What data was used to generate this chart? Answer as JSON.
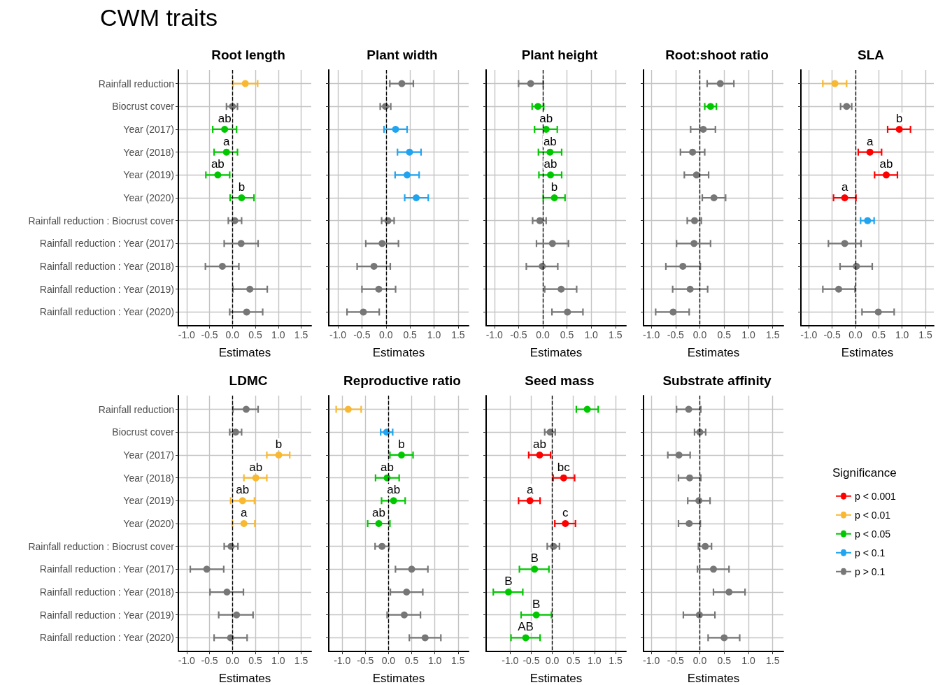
{
  "chart_data": [
    {
      "type": "other",
      "title": "CWM traits"
    },
    {
      "type": "scatter",
      "title": "Root length",
      "xlabel": "Estimates",
      "orientation": "horizontal",
      "grid": true,
      "legend": false,
      "marker": "circle",
      "categories": [
        "Rainfall reduction",
        "Biocrust cover",
        "Year (2017)",
        "Year (2018)",
        "Year (2019)",
        "Year (2020)",
        "Rainfall reduction : Biocrust cover",
        "Rainfall reduction : Year (2017)",
        "Rainfall reduction : Year (2018)",
        "Rainfall reduction : Year (2019)",
        "Rainfall reduction : Year (2020)"
      ],
      "xlim": [
        -1.18,
        1.72
      ],
      "xticks": [
        {
          "value": -1,
          "label": "-1.0"
        },
        {
          "value": -0.5,
          "label": "-0.5"
        },
        {
          "value": 0,
          "label": "0.0"
        },
        {
          "value": 0.5,
          "label": "0.5"
        },
        {
          "value": 1,
          "label": "1.0"
        },
        {
          "value": 1.5,
          "label": "1.5"
        }
      ],
      "ref_lines": [
        {
          "axis": "x",
          "value": 0,
          "line_style": "dashed",
          "color": "#000000"
        }
      ],
      "series": [
        {
          "color": "#f9b831",
          "values": [
            0.28,
            null,
            null,
            null,
            null,
            null,
            null,
            null,
            null,
            null,
            null
          ],
          "errors": [
            [
              0.01,
              0.55
            ],
            null,
            null,
            null,
            null,
            null,
            null,
            null,
            null,
            null,
            null
          ]
        },
        {
          "color": "#00c800",
          "values": [
            null,
            null,
            -0.17,
            -0.13,
            -0.32,
            0.2,
            null,
            null,
            null,
            null,
            null
          ],
          "errors": [
            null,
            null,
            [
              -0.43,
              0.09
            ],
            [
              -0.4,
              0.11
            ],
            [
              -0.58,
              -0.06
            ],
            [
              -0.05,
              0.47
            ],
            null,
            null,
            null,
            null,
            null
          ]
        },
        {
          "color": "#777777",
          "values": [
            null,
            0.0,
            null,
            null,
            null,
            null,
            0.05,
            0.19,
            -0.22,
            0.38,
            0.31
          ],
          "errors": [
            null,
            [
              -0.13,
              0.11
            ],
            null,
            null,
            null,
            null,
            [
              -0.09,
              0.2
            ],
            [
              -0.18,
              0.56
            ],
            [
              -0.59,
              0.14
            ],
            [
              0.01,
              0.76
            ],
            [
              -0.06,
              0.66
            ]
          ]
        }
      ],
      "annotations": [
        {
          "text": "ab",
          "x": -0.17,
          "y": "Year (2017)"
        },
        {
          "text": "a",
          "x": -0.13,
          "y": "Year (2018)"
        },
        {
          "text": "ab",
          "x": -0.32,
          "y": "Year (2019)"
        },
        {
          "text": "b",
          "x": 0.2,
          "y": "Year (2020)"
        }
      ]
    },
    {
      "type": "scatter",
      "title": "Plant width",
      "xlabel": "Estimates",
      "orientation": "horizontal",
      "grid": true,
      "legend": false,
      "marker": "circle",
      "tick_labels": "x",
      "categories": [
        "Rainfall reduction",
        "Biocrust cover",
        "Year (2017)",
        "Year (2018)",
        "Year (2019)",
        "Year (2020)",
        "Rainfall reduction : Biocrust cover",
        "Rainfall reduction : Year (2017)",
        "Rainfall reduction : Year (2018)",
        "Rainfall reduction : Year (2019)",
        "Rainfall reduction : Year (2020)"
      ],
      "xlim": [
        -1.19,
        1.72
      ],
      "xticks": [
        {
          "value": -1,
          "label": "-1.0"
        },
        {
          "value": -0.5,
          "label": "-0.5"
        },
        {
          "value": 0,
          "label": "0.0"
        },
        {
          "value": 0.5,
          "label": "0.5"
        },
        {
          "value": 1,
          "label": "1.0"
        },
        {
          "value": 1.5,
          "label": "1.5"
        }
      ],
      "ref_lines": [
        {
          "axis": "x",
          "value": 0,
          "line_style": "dashed",
          "color": "#000000"
        }
      ],
      "series": [
        {
          "color": "#20a4ef",
          "values": [
            null,
            null,
            0.2,
            0.49,
            0.44,
            0.63,
            null,
            null,
            null,
            null,
            null
          ],
          "errors": [
            null,
            null,
            [
              -0.04,
              0.44
            ],
            [
              0.24,
              0.73
            ],
            [
              0.19,
              0.69
            ],
            [
              0.39,
              0.88
            ],
            null,
            null,
            null,
            null,
            null
          ]
        },
        {
          "color": "#777777",
          "values": [
            0.33,
            -0.01,
            null,
            null,
            null,
            null,
            0.04,
            -0.08,
            -0.25,
            -0.15,
            -0.47
          ],
          "errors": [
            [
              0.08,
              0.57
            ],
            [
              -0.12,
              0.1
            ],
            null,
            null,
            null,
            null,
            [
              -0.09,
              0.17
            ],
            [
              -0.42,
              0.26
            ],
            [
              -0.6,
              0.09
            ],
            [
              -0.5,
              0.2
            ],
            [
              -0.81,
              -0.14
            ]
          ]
        }
      ]
    },
    {
      "type": "scatter",
      "title": "Plant height",
      "xlabel": "Estimates",
      "orientation": "horizontal",
      "grid": true,
      "legend": false,
      "marker": "circle",
      "tick_labels": "x",
      "categories": [
        "Rainfall reduction",
        "Biocrust cover",
        "Year (2017)",
        "Year (2018)",
        "Year (2019)",
        "Year (2020)",
        "Rainfall reduction : Biocrust cover",
        "Rainfall reduction : Year (2017)",
        "Rainfall reduction : Year (2018)",
        "Rainfall reduction : Year (2019)",
        "Rainfall reduction : Year (2020)"
      ],
      "xlim": [
        -1.17,
        1.72
      ],
      "xticks": [
        {
          "value": -1,
          "label": "-1.0"
        },
        {
          "value": -0.5,
          "label": "-0.5"
        },
        {
          "value": 0,
          "label": "0.0"
        },
        {
          "value": 0.5,
          "label": "0.5"
        },
        {
          "value": 1,
          "label": "1.0"
        },
        {
          "value": 1.5,
          "label": "1.5"
        }
      ],
      "ref_lines": [
        {
          "axis": "x",
          "value": 0,
          "line_style": "dashed",
          "color": "#000000"
        }
      ],
      "series": [
        {
          "color": "#00c800",
          "values": [
            null,
            -0.1,
            0.07,
            0.15,
            0.16,
            0.24,
            null,
            null,
            null,
            null,
            null
          ],
          "errors": [
            null,
            [
              -0.22,
              0.02
            ],
            [
              -0.17,
              0.3
            ],
            [
              -0.09,
              0.39
            ],
            [
              -0.08,
              0.39
            ],
            [
              0.01,
              0.46
            ],
            null,
            null,
            null,
            null,
            null
          ]
        },
        {
          "color": "#777777",
          "values": [
            -0.25,
            null,
            null,
            null,
            null,
            null,
            -0.06,
            0.2,
            -0.01,
            0.38,
            0.51
          ],
          "errors": [
            [
              -0.5,
              0.01
            ],
            null,
            null,
            null,
            null,
            null,
            [
              -0.21,
              0.07
            ],
            [
              -0.13,
              0.53
            ],
            [
              -0.34,
              0.31
            ],
            [
              0.04,
              0.7
            ],
            [
              0.19,
              0.83
            ]
          ]
        }
      ],
      "annotations": [
        {
          "text": "ab",
          "x": 0.07,
          "y": "Year (2017)"
        },
        {
          "text": "ab",
          "x": 0.15,
          "y": "Year (2018)"
        },
        {
          "text": "ab",
          "x": 0.16,
          "y": "Year (2019)"
        },
        {
          "text": "b",
          "x": 0.24,
          "y": "Year (2020)"
        }
      ]
    },
    {
      "type": "scatter",
      "title": "Root:shoot ratio",
      "xlabel": "Estimates",
      "orientation": "horizontal",
      "grid": true,
      "legend": false,
      "marker": "circle",
      "tick_labels": "x",
      "categories": [
        "Rainfall reduction",
        "Biocrust cover",
        "Year (2017)",
        "Year (2018)",
        "Year (2019)",
        "Year (2020)",
        "Rainfall reduction : Biocrust cover",
        "Rainfall reduction : Year (2017)",
        "Rainfall reduction : Year (2018)",
        "Rainfall reduction : Year (2019)",
        "Rainfall reduction : Year (2020)"
      ],
      "xlim": [
        -1.16,
        1.72
      ],
      "xticks": [
        {
          "value": -1,
          "label": "-1.0"
        },
        {
          "value": -0.5,
          "label": "-0.5"
        },
        {
          "value": 0,
          "label": "0.0"
        },
        {
          "value": 0.5,
          "label": "0.5"
        },
        {
          "value": 1,
          "label": "1.0"
        },
        {
          "value": 1.5,
          "label": "1.5"
        }
      ],
      "ref_lines": [
        {
          "axis": "x",
          "value": 0,
          "line_style": "dashed",
          "color": "#000000"
        }
      ],
      "series": [
        {
          "color": "#00c800",
          "values": [
            null,
            0.22,
            null,
            null,
            null,
            null,
            null,
            null,
            null,
            null,
            null
          ],
          "errors": [
            null,
            [
              0.1,
              0.34
            ],
            null,
            null,
            null,
            null,
            null,
            null,
            null,
            null,
            null
          ]
        },
        {
          "color": "#777777",
          "values": [
            0.42,
            null,
            0.07,
            -0.15,
            -0.07,
            0.29,
            -0.11,
            -0.12,
            -0.35,
            -0.2,
            -0.55
          ],
          "errors": [
            [
              0.15,
              0.7
            ],
            null,
            [
              -0.19,
              0.32
            ],
            [
              -0.4,
              0.1
            ],
            [
              -0.32,
              0.18
            ],
            [
              0.05,
              0.53
            ],
            [
              -0.26,
              0.03
            ],
            [
              -0.48,
              0.22
            ],
            [
              -0.7,
              0.01
            ],
            [
              -0.56,
              0.16
            ],
            [
              -0.91,
              -0.22
            ]
          ]
        }
      ]
    },
    {
      "type": "scatter",
      "title": "SLA",
      "xlabel": "Estimates",
      "orientation": "horizontal",
      "grid": true,
      "legend": false,
      "marker": "circle",
      "tick_labels": "x",
      "categories": [
        "Rainfall reduction",
        "Biocrust cover",
        "Year (2017)",
        "Year (2018)",
        "Year (2019)",
        "Year (2020)",
        "Rainfall reduction : Biocrust cover",
        "Rainfall reduction : Year (2017)",
        "Rainfall reduction : Year (2018)",
        "Rainfall reduction : Year (2019)",
        "Rainfall reduction : Year (2020)"
      ],
      "xlim": [
        -1.17,
        1.68
      ],
      "xticks": [
        {
          "value": -1,
          "label": "-1.0"
        },
        {
          "value": -0.5,
          "label": "-0.5"
        },
        {
          "value": 0,
          "label": "0.0"
        },
        {
          "value": 0.5,
          "label": "0.5"
        },
        {
          "value": 1,
          "label": "1.0"
        },
        {
          "value": 1.5,
          "label": "1.5"
        }
      ],
      "ref_lines": [
        {
          "axis": "x",
          "value": 0,
          "line_style": "dashed",
          "color": "#000000"
        }
      ],
      "series": [
        {
          "color": "#ff0000",
          "values": [
            null,
            null,
            0.94,
            0.31,
            0.66,
            -0.23,
            null,
            null,
            null,
            null,
            null
          ],
          "errors": [
            null,
            null,
            [
              0.69,
              1.18
            ],
            [
              0.06,
              0.56
            ],
            [
              0.41,
              0.9
            ],
            [
              -0.47,
              0.01
            ],
            null,
            null,
            null,
            null,
            null
          ]
        },
        {
          "color": "#f9b831",
          "values": [
            -0.44,
            null,
            null,
            null,
            null,
            null,
            null,
            null,
            null,
            null,
            null
          ],
          "errors": [
            [
              -0.7,
              -0.19
            ],
            null,
            null,
            null,
            null,
            null,
            null,
            null,
            null,
            null,
            null
          ]
        },
        {
          "color": "#20a4ef",
          "values": [
            null,
            null,
            null,
            null,
            null,
            null,
            0.26,
            null,
            null,
            null,
            null
          ],
          "errors": [
            null,
            null,
            null,
            null,
            null,
            null,
            [
              0.11,
              0.4
            ],
            null,
            null,
            null,
            null
          ]
        },
        {
          "color": "#777777",
          "values": [
            null,
            -0.19,
            null,
            null,
            null,
            null,
            null,
            -0.23,
            0.02,
            -0.36,
            0.49
          ],
          "errors": [
            null,
            [
              -0.32,
              -0.08
            ],
            null,
            null,
            null,
            null,
            null,
            [
              -0.58,
              0.12
            ],
            [
              -0.33,
              0.36
            ],
            [
              -0.7,
              -0.01
            ],
            [
              0.14,
              0.83
            ]
          ]
        }
      ],
      "annotations": [
        {
          "text": "b",
          "x": 0.94,
          "y": "Year (2017)"
        },
        {
          "text": "a",
          "x": 0.31,
          "y": "Year (2018)"
        },
        {
          "text": "ab",
          "x": 0.66,
          "y": "Year (2019)"
        },
        {
          "text": "a",
          "x": -0.23,
          "y": "Year (2020)"
        }
      ]
    },
    {
      "type": "scatter",
      "title": "LDMC",
      "xlabel": "Estimates",
      "orientation": "horizontal",
      "grid": true,
      "legend": false,
      "marker": "circle",
      "categories": [
        "Rainfall reduction",
        "Biocrust cover",
        "Year (2017)",
        "Year (2018)",
        "Year (2019)",
        "Year (2020)",
        "Rainfall reduction : Biocrust cover",
        "Rainfall reduction : Year (2017)",
        "Rainfall reduction : Year (2018)",
        "Rainfall reduction : Year (2019)",
        "Rainfall reduction : Year (2020)"
      ],
      "xlim": [
        -1.18,
        1.72
      ],
      "xticks": [
        {
          "value": -1,
          "label": "-1.0"
        },
        {
          "value": -0.5,
          "label": "-0.5"
        },
        {
          "value": 0,
          "label": "0.0"
        },
        {
          "value": 0.5,
          "label": "0.5"
        },
        {
          "value": 1,
          "label": "1.0"
        },
        {
          "value": 1.5,
          "label": "1.5"
        }
      ],
      "ref_lines": [
        {
          "axis": "x",
          "value": 0,
          "line_style": "dashed",
          "color": "#000000"
        }
      ],
      "series": [
        {
          "color": "#f9b831",
          "values": [
            null,
            null,
            1.01,
            0.51,
            0.22,
            0.25,
            null,
            null,
            null,
            null,
            null
          ],
          "errors": [
            null,
            null,
            [
              0.75,
              1.25
            ],
            [
              0.25,
              0.75
            ],
            [
              -0.04,
              0.48
            ],
            [
              0.0,
              0.49
            ],
            null,
            null,
            null,
            null,
            null
          ]
        },
        {
          "color": "#777777",
          "values": [
            0.3,
            0.07,
            null,
            null,
            null,
            null,
            -0.03,
            -0.56,
            -0.12,
            0.09,
            -0.04
          ],
          "errors": [
            [
              0.01,
              0.56
            ],
            [
              -0.06,
              0.2
            ],
            null,
            null,
            null,
            null,
            [
              -0.18,
              0.12
            ],
            [
              -0.92,
              -0.19
            ],
            [
              -0.49,
              0.24
            ],
            [
              -0.3,
              0.45
            ],
            [
              -0.4,
              0.32
            ]
          ]
        }
      ],
      "annotations": [
        {
          "text": "b",
          "x": 1.01,
          "y": "Year (2017)"
        },
        {
          "text": "ab",
          "x": 0.51,
          "y": "Year (2018)"
        },
        {
          "text": "ab",
          "x": 0.22,
          "y": "Year (2019)"
        },
        {
          "text": "a",
          "x": 0.25,
          "y": "Year (2020)"
        }
      ]
    },
    {
      "type": "scatter",
      "title": "Reproductive ratio",
      "xlabel": "Estimates",
      "orientation": "horizontal",
      "grid": true,
      "legend": false,
      "marker": "circle",
      "tick_labels": "x",
      "categories": [
        "Rainfall reduction",
        "Biocrust cover",
        "Year (2017)",
        "Year (2018)",
        "Year (2019)",
        "Year (2020)",
        "Rainfall reduction : Biocrust cover",
        "Rainfall reduction : Year (2017)",
        "Rainfall reduction : Year (2018)",
        "Rainfall reduction : Year (2019)",
        "Rainfall reduction : Year (2020)"
      ],
      "xlim": [
        -1.29,
        1.73
      ],
      "xticks": [
        {
          "value": -1,
          "label": "-1.0"
        },
        {
          "value": -0.5,
          "label": "-0.5"
        },
        {
          "value": 0,
          "label": "0.0"
        },
        {
          "value": 0.5,
          "label": "0.5"
        },
        {
          "value": 1,
          "label": "1.0"
        },
        {
          "value": 1.5,
          "label": "1.5"
        }
      ],
      "ref_lines": [
        {
          "axis": "x",
          "value": 0,
          "line_style": "dashed",
          "color": "#000000"
        }
      ],
      "series": [
        {
          "color": "#f9b831",
          "values": [
            -0.87,
            null,
            null,
            null,
            null,
            null,
            null,
            null,
            null,
            null,
            null
          ],
          "errors": [
            [
              -1.13,
              -0.59
            ],
            null,
            null,
            null,
            null,
            null,
            null,
            null,
            null,
            null,
            null
          ]
        },
        {
          "color": "#00c800",
          "values": [
            null,
            null,
            0.28,
            -0.03,
            0.11,
            -0.21,
            null,
            null,
            null,
            null,
            null
          ],
          "errors": [
            null,
            null,
            [
              0.03,
              0.53
            ],
            [
              -0.28,
              0.23
            ],
            [
              -0.15,
              0.36
            ],
            [
              -0.45,
              0.03
            ],
            null,
            null,
            null,
            null,
            null
          ]
        },
        {
          "color": "#20a4ef",
          "values": [
            null,
            -0.04,
            null,
            null,
            null,
            null,
            null,
            null,
            null,
            null,
            null
          ],
          "errors": [
            null,
            [
              -0.17,
              0.09
            ],
            null,
            null,
            null,
            null,
            null,
            null,
            null,
            null,
            null
          ]
        },
        {
          "color": "#777777",
          "values": [
            null,
            null,
            null,
            null,
            null,
            null,
            -0.14,
            0.5,
            0.39,
            0.34,
            0.79
          ],
          "errors": [
            null,
            null,
            null,
            null,
            null,
            null,
            [
              -0.29,
              0.01
            ],
            [
              0.15,
              0.85
            ],
            [
              0.04,
              0.74
            ],
            [
              -0.03,
              0.69
            ],
            [
              0.45,
              1.13
            ]
          ]
        }
      ],
      "annotations": [
        {
          "text": "b",
          "x": 0.28,
          "y": "Year (2017)"
        },
        {
          "text": "ab",
          "x": -0.03,
          "y": "Year (2018)"
        },
        {
          "text": "ab",
          "x": 0.11,
          "y": "Year (2019)"
        },
        {
          "text": "ab",
          "x": -0.21,
          "y": "Year (2020)"
        }
      ]
    },
    {
      "type": "scatter",
      "title": "Seed mass",
      "xlabel": "Estimates",
      "orientation": "horizontal",
      "grid": true,
      "legend": false,
      "marker": "circle",
      "tick_labels": "x",
      "categories": [
        "Rainfall reduction",
        "Biocrust cover",
        "Year (2017)",
        "Year (2018)",
        "Year (2019)",
        "Year (2020)",
        "Rainfall reduction : Biocrust cover",
        "Rainfall reduction : Year (2017)",
        "Rainfall reduction : Year (2018)",
        "Rainfall reduction : Year (2019)",
        "Rainfall reduction : Year (2020)"
      ],
      "xlim": [
        -1.57,
        1.75
      ],
      "xticks": [
        {
          "value": -1,
          "label": "-1.0"
        },
        {
          "value": -0.5,
          "label": "-0.5"
        },
        {
          "value": 0,
          "label": "0.0"
        },
        {
          "value": 0.5,
          "label": "0.5"
        },
        {
          "value": 1,
          "label": "1.0"
        },
        {
          "value": 1.5,
          "label": "1.5"
        }
      ],
      "ref_lines": [
        {
          "axis": "x",
          "value": 0,
          "line_style": "dashed",
          "color": "#000000"
        }
      ],
      "series": [
        {
          "color": "#ff0000",
          "values": [
            null,
            null,
            -0.3,
            0.27,
            -0.53,
            0.31,
            null,
            null,
            null,
            null,
            null
          ],
          "errors": [
            null,
            null,
            [
              -0.56,
              -0.04
            ],
            [
              0.02,
              0.53
            ],
            [
              -0.8,
              -0.29
            ],
            [
              0.06,
              0.55
            ],
            null,
            null,
            null,
            null,
            null
          ]
        },
        {
          "color": "#00c800",
          "values": [
            0.83,
            null,
            null,
            null,
            null,
            null,
            null,
            -0.42,
            -1.04,
            -0.38,
            -0.63
          ],
          "errors": [
            [
              0.57,
              1.09
            ],
            null,
            null,
            null,
            null,
            null,
            null,
            [
              -0.78,
              -0.08
            ],
            [
              -1.4,
              -0.7
            ],
            [
              -0.74,
              -0.02
            ],
            [
              -0.98,
              -0.29
            ]
          ]
        },
        {
          "color": "#777777",
          "values": [
            null,
            -0.05,
            null,
            null,
            null,
            null,
            0.03,
            null,
            null,
            null,
            null
          ],
          "errors": [
            null,
            [
              -0.18,
              0.07
            ],
            null,
            null,
            null,
            null,
            [
              -0.12,
              0.17
            ],
            null,
            null,
            null,
            null
          ]
        }
      ],
      "annotations": [
        {
          "text": "ab",
          "x": -0.3,
          "y": "Year (2017)"
        },
        {
          "text": "bc",
          "x": 0.27,
          "y": "Year (2018)"
        },
        {
          "text": "a",
          "x": -0.53,
          "y": "Year (2019)"
        },
        {
          "text": "c",
          "x": 0.31,
          "y": "Year (2020)"
        },
        {
          "text": "B",
          "x": -0.42,
          "y": "Rainfall reduction : Year (2017)"
        },
        {
          "text": "B",
          "x": -1.04,
          "y": "Rainfall reduction : Year (2018)"
        },
        {
          "text": "B",
          "x": -0.38,
          "y": "Rainfall reduction : Year (2019)"
        },
        {
          "text": "AB",
          "x": -0.63,
          "y": "Rainfall reduction : Year (2020)"
        }
      ]
    },
    {
      "type": "scatter",
      "title": "Substrate affinity",
      "xlabel": "Estimates",
      "orientation": "horizontal",
      "grid": true,
      "legend": "right",
      "legend_title": "Significance",
      "marker": "circle",
      "tick_labels": "x",
      "categories": [
        "Rainfall reduction",
        "Biocrust cover",
        "Year (2017)",
        "Year (2018)",
        "Year (2019)",
        "Year (2020)",
        "Rainfall reduction : Biocrust cover",
        "Rainfall reduction : Year (2017)",
        "Rainfall reduction : Year (2018)",
        "Rainfall reduction : Year (2019)",
        "Rainfall reduction : Year (2020)"
      ],
      "xlim": [
        -1.16,
        1.72
      ],
      "xticks": [
        {
          "value": -1,
          "label": "-1.0"
        },
        {
          "value": -0.5,
          "label": "-0.5"
        },
        {
          "value": 0,
          "label": "0.0"
        },
        {
          "value": 0.5,
          "label": "0.5"
        },
        {
          "value": 1,
          "label": "1.0"
        },
        {
          "value": 1.5,
          "label": "1.5"
        }
      ],
      "ref_lines": [
        {
          "axis": "x",
          "value": 0,
          "line_style": "dashed",
          "color": "#000000"
        }
      ],
      "series": [
        {
          "name": "p < 0.001",
          "color": "#ff0000",
          "values": [
            null,
            null,
            null,
            null,
            null,
            null,
            null,
            null,
            null,
            null,
            null
          ]
        },
        {
          "name": "p < 0.01",
          "color": "#f9b831",
          "values": [
            null,
            null,
            null,
            null,
            null,
            null,
            null,
            null,
            null,
            null,
            null
          ]
        },
        {
          "name": "p < 0.05",
          "color": "#00c800",
          "values": [
            null,
            null,
            null,
            null,
            null,
            null,
            null,
            null,
            null,
            null,
            null
          ]
        },
        {
          "name": "p < 0.1",
          "color": "#20a4ef",
          "values": [
            null,
            null,
            null,
            null,
            null,
            null,
            null,
            null,
            null,
            null,
            null
          ]
        },
        {
          "name": "p > 0.1",
          "color": "#777777",
          "values": [
            -0.23,
            0.0,
            -0.43,
            -0.21,
            -0.02,
            -0.22,
            0.11,
            0.28,
            0.6,
            -0.01,
            0.5
          ],
          "errors": [
            [
              -0.48,
              0.02
            ],
            [
              -0.11,
              0.12
            ],
            [
              -0.66,
              -0.2
            ],
            [
              -0.44,
              0.02
            ],
            [
              -0.25,
              0.21
            ],
            [
              -0.44,
              0.01
            ],
            [
              -0.03,
              0.24
            ],
            [
              -0.05,
              0.6
            ],
            [
              0.28,
              0.93
            ],
            [
              -0.34,
              0.31
            ],
            [
              0.17,
              0.82
            ]
          ]
        }
      ]
    }
  ]
}
